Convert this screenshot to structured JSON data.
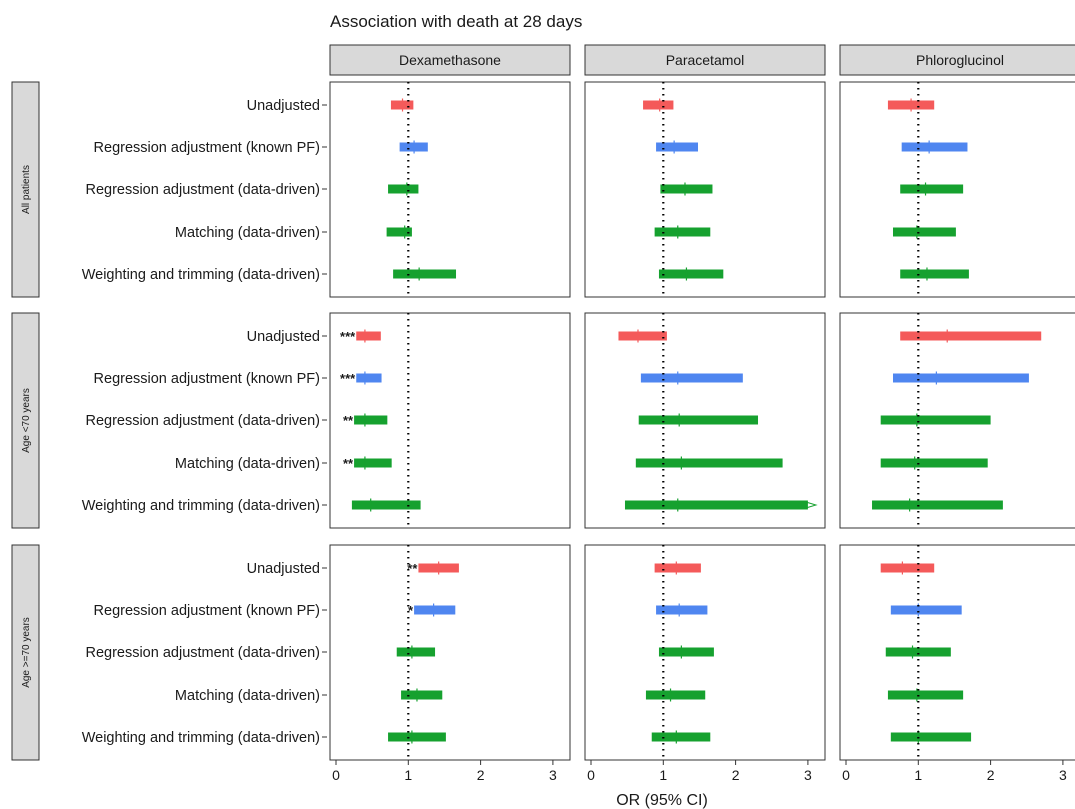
{
  "chart_data": {
    "type": "forest",
    "title": "Association with death at 28 days",
    "xlabel": "OR (95% CI)",
    "xlim": [
      -0.05,
      3.2
    ],
    "xticks": [
      0,
      1,
      2,
      3
    ],
    "reference_line": 1,
    "columns": [
      "Dexamethasone",
      "Paracetamol",
      "Phloroglucinol"
    ],
    "rows": [
      "All patients",
      "Age <70 years",
      "Age >=70 years"
    ],
    "methods": [
      "Unadjusted",
      "Regression adjustment (known PF)",
      "Regression adjustment (data-driven)",
      "Matching (data-driven)",
      "Weighting and trimming (data-driven)"
    ],
    "method_colors": [
      "#f45a5a",
      "#4f86f0",
      "#16a12f",
      "#16a12f",
      "#16a12f"
    ],
    "cells": [
      [
        {
          "est": [
            0.92,
            1.08,
            0.98,
            0.95,
            1.15
          ],
          "lo": [
            0.76,
            0.88,
            0.72,
            0.7,
            0.79
          ],
          "hi": [
            1.07,
            1.27,
            1.14,
            1.05,
            1.66
          ],
          "stars": [
            "",
            "",
            "",
            "",
            ""
          ]
        },
        {
          "est": [
            0.95,
            1.15,
            1.3,
            1.2,
            1.32
          ],
          "lo": [
            0.72,
            0.9,
            0.96,
            0.88,
            0.94
          ],
          "hi": [
            1.14,
            1.48,
            1.68,
            1.65,
            1.83
          ],
          "stars": [
            "",
            "",
            "",
            "",
            ""
          ]
        },
        {
          "est": [
            0.9,
            1.15,
            1.1,
            0.98,
            1.12
          ],
          "lo": [
            0.58,
            0.77,
            0.75,
            0.65,
            0.75
          ],
          "hi": [
            1.22,
            1.68,
            1.62,
            1.52,
            1.7
          ],
          "stars": [
            "",
            "",
            "",
            "",
            ""
          ]
        }
      ],
      [
        {
          "est": [
            0.4,
            0.4,
            0.4,
            0.4,
            0.48
          ],
          "lo": [
            0.28,
            0.28,
            0.25,
            0.25,
            0.22
          ],
          "hi": [
            0.62,
            0.63,
            0.71,
            0.77,
            1.17
          ],
          "stars": [
            "***",
            "***",
            "**",
            "**",
            ""
          ]
        },
        {
          "est": [
            0.65,
            1.2,
            1.22,
            1.25,
            1.2
          ],
          "lo": [
            0.38,
            0.69,
            0.66,
            0.62,
            0.47
          ],
          "hi": [
            1.05,
            2.1,
            2.31,
            2.65,
            3.0
          ],
          "stars": [
            "",
            "",
            "",
            "",
            ""
          ]
        },
        {
          "est": [
            1.4,
            1.25,
            0.98,
            0.95,
            0.88
          ],
          "lo": [
            0.75,
            0.65,
            0.48,
            0.48,
            0.36
          ],
          "hi": [
            2.7,
            2.53,
            2.0,
            1.96,
            2.17
          ],
          "stars": [
            "",
            "",
            "",
            "",
            ""
          ]
        }
      ],
      [
        {
          "est": [
            1.42,
            1.35,
            1.05,
            1.12,
            1.05
          ],
          "lo": [
            1.14,
            1.08,
            0.84,
            0.9,
            0.72
          ],
          "hi": [
            1.7,
            1.65,
            1.37,
            1.47,
            1.52
          ],
          "stars": [
            "**",
            "*",
            "",
            "",
            ""
          ]
        },
        {
          "est": [
            1.18,
            1.22,
            1.25,
            1.1,
            1.18
          ],
          "lo": [
            0.88,
            0.9,
            0.94,
            0.76,
            0.84
          ],
          "hi": [
            1.52,
            1.61,
            1.7,
            1.58,
            1.65
          ],
          "stars": [
            "",
            "",
            "",
            "",
            ""
          ]
        },
        {
          "est": [
            0.78,
            1.0,
            0.92,
            0.98,
            1.0
          ],
          "lo": [
            0.48,
            0.62,
            0.55,
            0.58,
            0.62
          ],
          "hi": [
            1.22,
            1.6,
            1.45,
            1.62,
            1.73
          ],
          "stars": [
            "",
            "",
            "",
            "",
            ""
          ]
        }
      ]
    ]
  }
}
